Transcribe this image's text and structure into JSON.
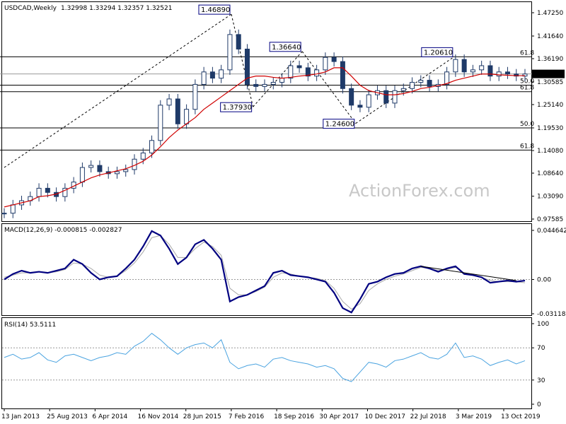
{
  "header": {
    "symbol": "USDCAD,Weekly",
    "ohlc": "1.32998 1.33294 1.32357 1.32521"
  },
  "watermark": "ActionForex.com",
  "colors": {
    "candle": "#1f3a68",
    "sma": "#d00000",
    "macd": "#000080",
    "signal": "#a8a8a8",
    "rsi": "#4aa3e0",
    "grid": "#000000",
    "box_border": "#000080"
  },
  "price_axis": {
    "ticks": [
      "1.47250",
      "1.41640",
      "1.36190",
      "1.30585",
      "1.25140",
      "1.19530",
      "1.14080",
      "1.08640",
      "1.03090",
      "0.97585"
    ],
    "current_price_tag": "1.32521"
  },
  "macd_axis": {
    "ticks": [
      "0.044642",
      "0.00",
      "-0.031183"
    ],
    "title": "MACD(12,26,9) -0.000815 -0.002827"
  },
  "rsi_axis": {
    "ticks": [
      "100",
      "70",
      "30",
      "0"
    ],
    "title": "RSI(14) 53.5111"
  },
  "time_axis": {
    "labels": [
      "13 Jan 2013",
      "25 Aug 2013",
      "6 Apr 2014",
      "16 Nov 2014",
      "28 Jun 2015",
      "7 Feb 2016",
      "18 Sep 2016",
      "30 Apr 2017",
      "10 Dec 2017",
      "22 Jul 2018",
      "3 Mar 2019",
      "13 Oct 2019"
    ]
  },
  "annotations": {
    "swing_labels": [
      "1.46890",
      "1.37930",
      "1.36640",
      "1.24600",
      "1.20610"
    ],
    "fib_labels": [
      "61.8",
      "50.0",
      "61.8",
      "50.0",
      "61.8"
    ]
  },
  "chart_data": [
    {
      "type": "candlestick",
      "title": "USDCAD,Weekly",
      "x": [
        "2013-01-13",
        "2013-02-24",
        "2013-04-07",
        "2013-05-19",
        "2013-06-30",
        "2013-08-11",
        "2013-09-22",
        "2013-11-03",
        "2013-12-15",
        "2014-01-26",
        "2014-03-09",
        "2014-04-20",
        "2014-06-01",
        "2014-07-13",
        "2014-08-24",
        "2014-10-05",
        "2014-11-16",
        "2014-12-28",
        "2015-02-08",
        "2015-03-22",
        "2015-05-03",
        "2015-06-14",
        "2015-07-26",
        "2015-09-06",
        "2015-10-18",
        "2015-11-29",
        "2016-01-10",
        "2016-02-21",
        "2016-04-03",
        "2016-05-15",
        "2016-06-26",
        "2016-08-07",
        "2016-09-18",
        "2016-10-30",
        "2016-12-11",
        "2017-01-22",
        "2017-03-05",
        "2017-04-16",
        "2017-05-28",
        "2017-07-09",
        "2017-08-20",
        "2017-10-01",
        "2017-11-12",
        "2017-12-24",
        "2018-02-04",
        "2018-03-18",
        "2018-04-29",
        "2018-06-10",
        "2018-07-22",
        "2018-09-02",
        "2018-10-14",
        "2018-11-25",
        "2019-01-06",
        "2019-02-17",
        "2019-03-31",
        "2019-05-12",
        "2019-06-23",
        "2019-08-04",
        "2019-09-15",
        "2019-10-27",
        "2019-12-08"
      ],
      "close": [
        0.99,
        1.01,
        1.02,
        1.03,
        1.05,
        1.04,
        1.03,
        1.05,
        1.065,
        1.1,
        1.105,
        1.09,
        1.085,
        1.09,
        1.095,
        1.12,
        1.135,
        1.165,
        1.25,
        1.265,
        1.205,
        1.24,
        1.3,
        1.33,
        1.315,
        1.335,
        1.42,
        1.385,
        1.3,
        1.295,
        1.3,
        1.305,
        1.315,
        1.345,
        1.34,
        1.32,
        1.335,
        1.365,
        1.355,
        1.29,
        1.25,
        1.245,
        1.275,
        1.285,
        1.255,
        1.285,
        1.29,
        1.305,
        1.31,
        1.295,
        1.3,
        1.33,
        1.36,
        1.33,
        1.335,
        1.345,
        1.32,
        1.33,
        1.325,
        1.32,
        1.325
      ],
      "sma_values": [
        1.005,
        1.01,
        1.015,
        1.02,
        1.03,
        1.032,
        1.036,
        1.045,
        1.055,
        1.065,
        1.075,
        1.082,
        1.087,
        1.092,
        1.097,
        1.105,
        1.115,
        1.13,
        1.15,
        1.172,
        1.19,
        1.205,
        1.22,
        1.24,
        1.255,
        1.27,
        1.285,
        1.3,
        1.315,
        1.32,
        1.32,
        1.317,
        1.315,
        1.317,
        1.32,
        1.322,
        1.325,
        1.33,
        1.34,
        1.34,
        1.32,
        1.298,
        1.285,
        1.28,
        1.275,
        1.275,
        1.278,
        1.283,
        1.29,
        1.293,
        1.297,
        1.302,
        1.31,
        1.315,
        1.32,
        1.325,
        1.325,
        1.323,
        1.322,
        1.321,
        1.321
      ],
      "fib_levels": [
        {
          "level": "61.8",
          "value": 1.3664
        },
        {
          "level": "50.0",
          "value": 1.2982
        },
        {
          "level": "61.8",
          "value": 1.2825
        },
        {
          "level": "50.0",
          "value": 1.1953
        },
        {
          "level": "61.8",
          "value": 1.1418
        }
      ],
      "swings": [
        {
          "label": "1.46890",
          "date": "2016-01-17",
          "value": 1.4689
        },
        {
          "label": "1.24600",
          "date": "2016-05-01",
          "value": 1.246
        },
        {
          "label": "1.37930",
          "date": "2016-12-25",
          "value": 1.3793
        },
        {
          "label": "1.20610",
          "date": "2017-09-10",
          "value": 1.2061
        },
        {
          "label": "1.36640",
          "date": "2018-12-30",
          "value": 1.3664
        }
      ],
      "current_price": 1.32521,
      "ylim": [
        0.97585,
        1.4725
      ]
    },
    {
      "type": "line",
      "title": "MACD(12,26,9) -0.000815 -0.002827",
      "series": [
        {
          "values": [
            0.0,
            0.005,
            0.008,
            0.006,
            0.007,
            0.006,
            0.008,
            0.01,
            0.018,
            0.014,
            0.006,
            0.0,
            0.002,
            0.003,
            0.01,
            0.018,
            0.03,
            0.044,
            0.04,
            0.028,
            0.014,
            0.02,
            0.032,
            0.036,
            0.028,
            0.018,
            -0.02,
            -0.016,
            -0.014,
            -0.01,
            -0.006,
            0.006,
            0.008,
            0.004,
            0.003,
            0.002,
            0.0,
            -0.002,
            -0.012,
            -0.026,
            -0.03,
            -0.018,
            -0.004,
            -0.002,
            0.002,
            0.005,
            0.006,
            0.01,
            0.012,
            0.01,
            0.007,
            0.01,
            0.012,
            0.005,
            0.004,
            0.002,
            -0.003,
            -0.002,
            -0.001,
            -0.002,
            -0.001
          ]
        },
        {
          "values": [
            0.002,
            0.004,
            0.006,
            0.006,
            0.007,
            0.006,
            0.007,
            0.009,
            0.015,
            0.014,
            0.01,
            0.004,
            0.002,
            0.003,
            0.008,
            0.015,
            0.025,
            0.038,
            0.04,
            0.032,
            0.02,
            0.02,
            0.028,
            0.034,
            0.03,
            0.022,
            -0.008,
            -0.014,
            -0.014,
            -0.011,
            -0.007,
            0.002,
            0.006,
            0.005,
            0.003,
            0.002,
            0.001,
            -0.001,
            -0.008,
            -0.02,
            -0.027,
            -0.022,
            -0.01,
            -0.004,
            0.0,
            0.003,
            0.005,
            0.008,
            0.011,
            0.01,
            0.008,
            0.009,
            0.011,
            0.006,
            0.004,
            0.002,
            -0.001,
            -0.002,
            -0.002,
            -0.002,
            -0.003
          ]
        }
      ],
      "ylim": [
        -0.031183,
        0.044642
      ]
    },
    {
      "type": "line",
      "title": "RSI(14) 53.5111",
      "series": [
        {
          "values": [
            58,
            62,
            56,
            58,
            64,
            55,
            52,
            60,
            62,
            58,
            54,
            58,
            60,
            64,
            62,
            72,
            78,
            88,
            80,
            70,
            62,
            70,
            74,
            76,
            70,
            80,
            52,
            44,
            48,
            50,
            46,
            56,
            58,
            54,
            52,
            50,
            46,
            48,
            44,
            32,
            28,
            40,
            52,
            50,
            46,
            54,
            56,
            60,
            64,
            58,
            56,
            62,
            76,
            58,
            60,
            56,
            48,
            52,
            55,
            50,
            54
          ]
        }
      ],
      "ylim": [
        0,
        100
      ]
    }
  ]
}
